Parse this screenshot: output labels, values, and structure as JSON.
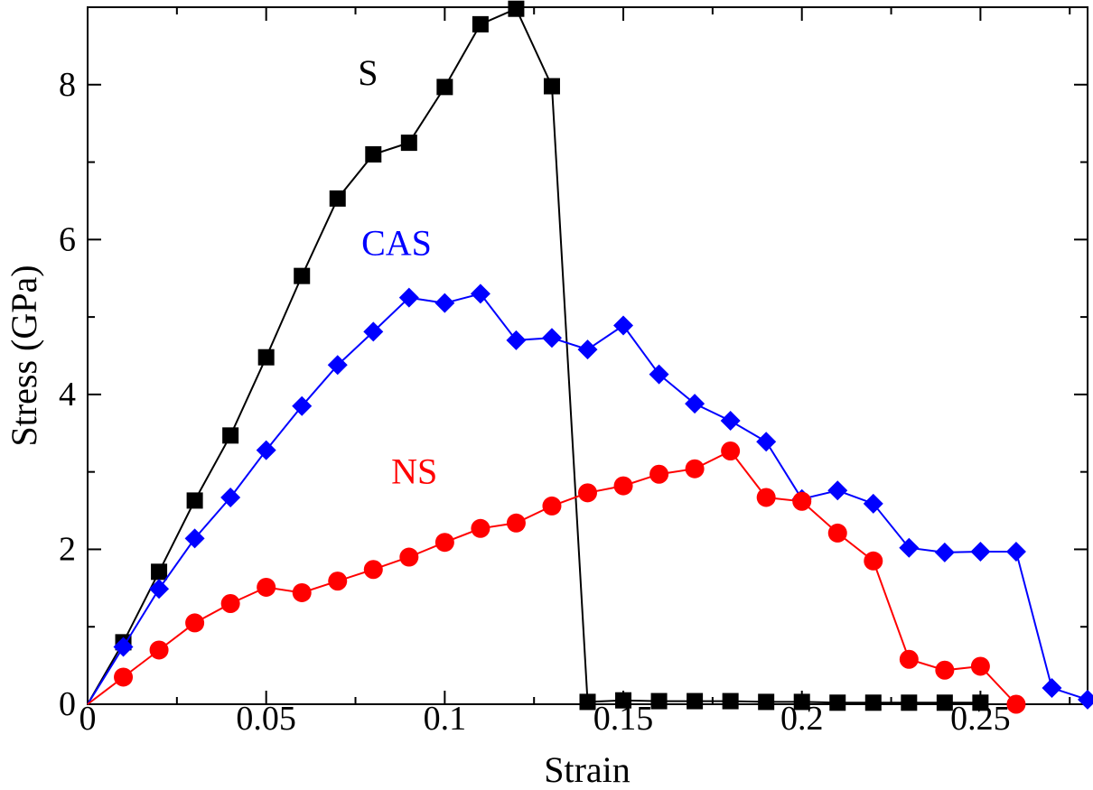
{
  "chart_data": {
    "type": "line",
    "title": "",
    "xlabel": "Strain",
    "ylabel": "Stress (GPa)",
    "xlim": [
      0,
      0.28
    ],
    "ylim": [
      0,
      9
    ],
    "xticks": [
      0,
      0.05,
      0.1,
      0.15,
      0.2,
      0.25
    ],
    "xtick_labels": [
      "0",
      "0.05",
      "0.1",
      "0.15",
      "0.2",
      "0.25"
    ],
    "yticks": [
      0,
      2,
      4,
      6,
      8
    ],
    "ytick_labels": [
      "0",
      "2",
      "4",
      "6",
      "8"
    ],
    "grid": false,
    "legend": "none",
    "series": [
      {
        "name": "S",
        "color": "#000000",
        "marker": "square",
        "x": [
          0,
          0.01,
          0.02,
          0.03,
          0.04,
          0.05,
          0.06,
          0.07,
          0.08,
          0.09,
          0.1,
          0.11,
          0.12,
          0.13,
          0.14,
          0.15,
          0.16,
          0.17,
          0.18,
          0.19,
          0.2,
          0.21,
          0.22,
          0.23,
          0.24,
          0.25
        ],
        "y": [
          0,
          0.8,
          1.71,
          2.63,
          3.47,
          4.48,
          5.53,
          6.53,
          7.1,
          7.25,
          7.97,
          8.78,
          8.98,
          7.98,
          0.03,
          0.05,
          0.04,
          0.04,
          0.04,
          0.03,
          0.03,
          0.02,
          0.02,
          0.02,
          0.02,
          0.02
        ],
        "marked": [
          false,
          true,
          true,
          true,
          true,
          true,
          true,
          true,
          true,
          true,
          true,
          true,
          true,
          true,
          true,
          true,
          true,
          true,
          true,
          true,
          true,
          true,
          true,
          true,
          true,
          true
        ]
      },
      {
        "name": "CAS",
        "color": "#0000ff",
        "marker": "diamond",
        "x": [
          0,
          0.01,
          0.02,
          0.03,
          0.04,
          0.05,
          0.06,
          0.07,
          0.08,
          0.09,
          0.1,
          0.11,
          0.12,
          0.13,
          0.14,
          0.15,
          0.16,
          0.17,
          0.18,
          0.19,
          0.2,
          0.21,
          0.22,
          0.23,
          0.24,
          0.25,
          0.26,
          0.27,
          0.28
        ],
        "y": [
          0,
          0.74,
          1.49,
          2.14,
          2.67,
          3.28,
          3.85,
          4.38,
          4.81,
          5.25,
          5.18,
          5.3,
          4.7,
          4.73,
          4.58,
          4.89,
          4.26,
          3.88,
          3.66,
          3.39,
          2.65,
          2.76,
          2.59,
          2.02,
          1.96,
          1.97,
          1.97,
          0.21,
          0.06
        ],
        "marked": [
          false,
          true,
          true,
          true,
          true,
          true,
          true,
          true,
          true,
          true,
          true,
          true,
          true,
          true,
          true,
          true,
          true,
          true,
          true,
          true,
          true,
          true,
          true,
          true,
          true,
          true,
          true,
          true,
          true
        ]
      },
      {
        "name": "NS",
        "color": "#ff0000",
        "marker": "circle",
        "x": [
          0,
          0.01,
          0.02,
          0.03,
          0.04,
          0.05,
          0.06,
          0.07,
          0.08,
          0.09,
          0.1,
          0.11,
          0.12,
          0.13,
          0.14,
          0.15,
          0.16,
          0.17,
          0.18,
          0.19,
          0.2,
          0.21,
          0.22,
          0.23,
          0.24,
          0.25,
          0.26
        ],
        "y": [
          0,
          0.35,
          0.7,
          1.05,
          1.3,
          1.51,
          1.44,
          1.59,
          1.74,
          1.9,
          2.09,
          2.27,
          2.34,
          2.56,
          2.73,
          2.82,
          2.97,
          3.04,
          3.27,
          2.67,
          2.62,
          2.21,
          1.85,
          0.58,
          0.44,
          0.49,
          0.0
        ],
        "marked": [
          false,
          true,
          true,
          true,
          true,
          true,
          true,
          true,
          true,
          true,
          true,
          true,
          true,
          true,
          true,
          true,
          true,
          true,
          true,
          true,
          true,
          true,
          true,
          true,
          true,
          true,
          true
        ]
      }
    ],
    "annotations": [
      {
        "text": "S",
        "series": "S",
        "color": "#000000",
        "x": 0.0785,
        "y": 8.0
      },
      {
        "text": "CAS",
        "series": "CAS",
        "color": "#0000ff",
        "x": 0.0865,
        "y": 5.8
      },
      {
        "text": "NS",
        "series": "NS",
        "color": "#ff0000",
        "x": 0.0915,
        "y": 2.85
      }
    ]
  }
}
